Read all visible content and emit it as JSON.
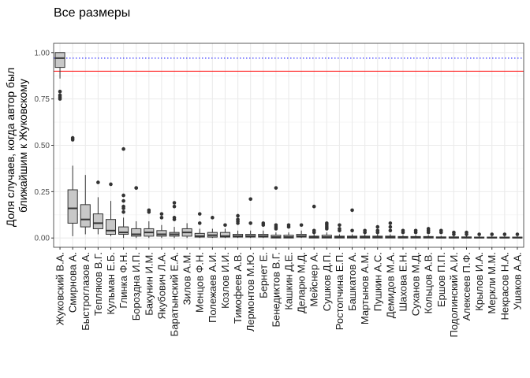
{
  "chart_data": {
    "type": "boxplot",
    "title": "Все размеры",
    "xlabel": "",
    "ylabel": [
      "Доля случаев, когда автор был",
      "ближайшим к Жуковскому"
    ],
    "ylim": [
      -0.05,
      1.05
    ],
    "yticks": [
      0,
      0.25,
      0.5,
      0.75,
      1
    ],
    "ytick_labels": [
      "0.00",
      "0.25",
      "0.50",
      "0.75",
      "1.00"
    ],
    "grid": true,
    "reference_lines": [
      {
        "y": 0.9,
        "color": "#ff0000",
        "style": "solid"
      },
      {
        "y": 0.97,
        "color": "#0000ff",
        "style": "dotted"
      }
    ],
    "box_fill": "#c8c8c8",
    "box_edge": "#333333",
    "boxes": [
      {
        "label": "Жуковский В.А.",
        "min": 0.86,
        "q1": 0.92,
        "median": 0.97,
        "q3": 1.0,
        "max": 1.0,
        "outliers": [
          0.79,
          0.77,
          0.76,
          0.75
        ]
      },
      {
        "label": "Смирнова А.",
        "min": 0.01,
        "q1": 0.08,
        "median": 0.16,
        "q3": 0.26,
        "max": 0.39,
        "outliers": [
          0.54,
          0.53
        ]
      },
      {
        "label": "Быстроглазов А.",
        "min": 0.02,
        "q1": 0.06,
        "median": 0.1,
        "q3": 0.18,
        "max": 0.34,
        "outliers": []
      },
      {
        "label": "Тепляков В.Г.",
        "min": 0.02,
        "q1": 0.05,
        "median": 0.08,
        "q3": 0.13,
        "max": 0.22,
        "outliers": [
          0.3
        ]
      },
      {
        "label": "Кульман Е.Б.",
        "min": 0.01,
        "q1": 0.02,
        "median": 0.04,
        "q3": 0.1,
        "max": 0.2,
        "outliers": [
          0.29
        ]
      },
      {
        "label": "Глинка Ф.Н.",
        "min": 0.0,
        "q1": 0.02,
        "median": 0.03,
        "q3": 0.06,
        "max": 0.11,
        "outliers": [
          0.48,
          0.23,
          0.2,
          0.17,
          0.16,
          0.14
        ]
      },
      {
        "label": "Бороздна И.П.",
        "min": 0.0,
        "q1": 0.01,
        "median": 0.02,
        "q3": 0.05,
        "max": 0.09,
        "outliers": [
          0.27,
          0.27
        ]
      },
      {
        "label": "Бакунин И.М.",
        "min": 0.0,
        "q1": 0.01,
        "median": 0.03,
        "q3": 0.05,
        "max": 0.09,
        "outliers": [
          0.15,
          0.14
        ]
      },
      {
        "label": "Якубович Л.А.",
        "min": 0.0,
        "q1": 0.01,
        "median": 0.02,
        "q3": 0.04,
        "max": 0.07,
        "outliers": [
          0.13,
          0.11
        ]
      },
      {
        "label": "Баратынский Е.А.",
        "min": 0.0,
        "q1": 0.01,
        "median": 0.02,
        "q3": 0.03,
        "max": 0.06,
        "outliers": [
          0.19,
          0.17,
          0.11,
          0.1
        ]
      },
      {
        "label": "Зилов А.М.",
        "min": 0.0,
        "q1": 0.01,
        "median": 0.03,
        "q3": 0.05,
        "max": 0.08,
        "outliers": []
      },
      {
        "label": "Менцов Ф.Н.",
        "min": 0.0,
        "q1": 0.005,
        "median": 0.01,
        "q3": 0.025,
        "max": 0.05,
        "outliers": [
          0.13,
          0.08
        ]
      },
      {
        "label": "Полежаев А.И.",
        "min": 0.0,
        "q1": 0.005,
        "median": 0.015,
        "q3": 0.03,
        "max": 0.05,
        "outliers": [
          0.11
        ]
      },
      {
        "label": "Козлов И.И.",
        "min": 0.0,
        "q1": 0.005,
        "median": 0.01,
        "q3": 0.03,
        "max": 0.05,
        "outliers": [
          0.07
        ]
      },
      {
        "label": "Тимофеев А.В.",
        "min": 0.0,
        "q1": 0.005,
        "median": 0.01,
        "q3": 0.02,
        "max": 0.04,
        "outliers": [
          0.12,
          0.1,
          0.09,
          0.08
        ]
      },
      {
        "label": "Лермонтов М.Ю.",
        "min": 0.0,
        "q1": 0.005,
        "median": 0.01,
        "q3": 0.02,
        "max": 0.04,
        "outliers": [
          0.21,
          0.08
        ]
      },
      {
        "label": "Бернет Е.",
        "min": 0.0,
        "q1": 0.005,
        "median": 0.01,
        "q3": 0.02,
        "max": 0.04,
        "outliers": [
          0.08,
          0.07
        ]
      },
      {
        "label": "Бенедиктов В.Г.",
        "min": 0.0,
        "q1": 0.0,
        "median": 0.005,
        "q3": 0.015,
        "max": 0.03,
        "outliers": [
          0.27,
          0.07,
          0.06,
          0.05
        ]
      },
      {
        "label": "Кашкин Д.Е.",
        "min": 0.0,
        "q1": 0.0,
        "median": 0.005,
        "q3": 0.015,
        "max": 0.03,
        "outliers": [
          0.07,
          0.06
        ]
      },
      {
        "label": "Деларю М.Д.",
        "min": 0.0,
        "q1": 0.005,
        "median": 0.01,
        "q3": 0.02,
        "max": 0.04,
        "outliers": [
          0.07
        ]
      },
      {
        "label": "Мейснер А.",
        "min": 0.0,
        "q1": 0.0,
        "median": 0.005,
        "q3": 0.01,
        "max": 0.02,
        "outliers": [
          0.17,
          0.04,
          0.03
        ]
      },
      {
        "label": "Сушков Д.П.",
        "min": 0.0,
        "q1": 0.0,
        "median": 0.005,
        "q3": 0.015,
        "max": 0.03,
        "outliers": [
          0.08,
          0.07,
          0.06,
          0.05
        ]
      },
      {
        "label": "Ростопчина Е.П.",
        "min": 0.0,
        "q1": 0.0,
        "median": 0.005,
        "q3": 0.01,
        "max": 0.02,
        "outliers": [
          0.07,
          0.05,
          0.04
        ]
      },
      {
        "label": "Башкатов А.",
        "min": 0.0,
        "q1": 0.0,
        "median": 0.005,
        "q3": 0.01,
        "max": 0.02,
        "outliers": [
          0.15,
          0.04
        ]
      },
      {
        "label": "Мартынов А.М.",
        "min": 0.0,
        "q1": 0.0,
        "median": 0.005,
        "q3": 0.01,
        "max": 0.02,
        "outliers": [
          0.04,
          0.03
        ]
      },
      {
        "label": "Пушкин А.С.",
        "min": 0.0,
        "q1": 0.0,
        "median": 0.005,
        "q3": 0.01,
        "max": 0.02,
        "outliers": [
          0.06,
          0.04,
          0.03
        ]
      },
      {
        "label": "Демидов М.А.",
        "min": 0.0,
        "q1": 0.0,
        "median": 0.005,
        "q3": 0.01,
        "max": 0.02,
        "outliers": [
          0.08,
          0.06,
          0.04
        ]
      },
      {
        "label": "Шахова Е.Н.",
        "min": 0.0,
        "q1": 0.0,
        "median": 0.003,
        "q3": 0.008,
        "max": 0.015,
        "outliers": [
          0.04,
          0.03
        ]
      },
      {
        "label": "Суханов М.Д.",
        "min": 0.0,
        "q1": 0.0,
        "median": 0.003,
        "q3": 0.008,
        "max": 0.015,
        "outliers": [
          0.04,
          0.03
        ]
      },
      {
        "label": "Кольцов А.В.",
        "min": 0.0,
        "q1": 0.0,
        "median": 0.003,
        "q3": 0.008,
        "max": 0.015,
        "outliers": [
          0.05,
          0.04,
          0.03
        ]
      },
      {
        "label": "Ершов П.П.",
        "min": 0.0,
        "q1": 0.0,
        "median": 0.002,
        "q3": 0.006,
        "max": 0.012,
        "outliers": [
          0.04,
          0.03
        ]
      },
      {
        "label": "Подолинский А.И.",
        "min": 0.0,
        "q1": 0.0,
        "median": 0.002,
        "q3": 0.006,
        "max": 0.012,
        "outliers": [
          0.03,
          0.02
        ]
      },
      {
        "label": "Алексеев П.Ф.",
        "min": 0.0,
        "q1": 0.0,
        "median": 0.002,
        "q3": 0.006,
        "max": 0.012,
        "outliers": [
          0.03,
          0.02
        ]
      },
      {
        "label": "Крылов И.А.",
        "min": 0.0,
        "q1": 0.0,
        "median": 0.002,
        "q3": 0.005,
        "max": 0.01,
        "outliers": [
          0.02
        ]
      },
      {
        "label": "Меркли М.М.",
        "min": 0.0,
        "q1": 0.0,
        "median": 0.002,
        "q3": 0.005,
        "max": 0.01,
        "outliers": [
          0.02
        ]
      },
      {
        "label": "Некрасов Н.А.",
        "min": 0.0,
        "q1": 0.0,
        "median": 0.002,
        "q3": 0.005,
        "max": 0.01,
        "outliers": [
          0.02
        ]
      },
      {
        "label": "Ушаков А.А.",
        "min": 0.0,
        "q1": 0.0,
        "median": 0.002,
        "q3": 0.005,
        "max": 0.01,
        "outliers": [
          0.02
        ]
      }
    ]
  }
}
